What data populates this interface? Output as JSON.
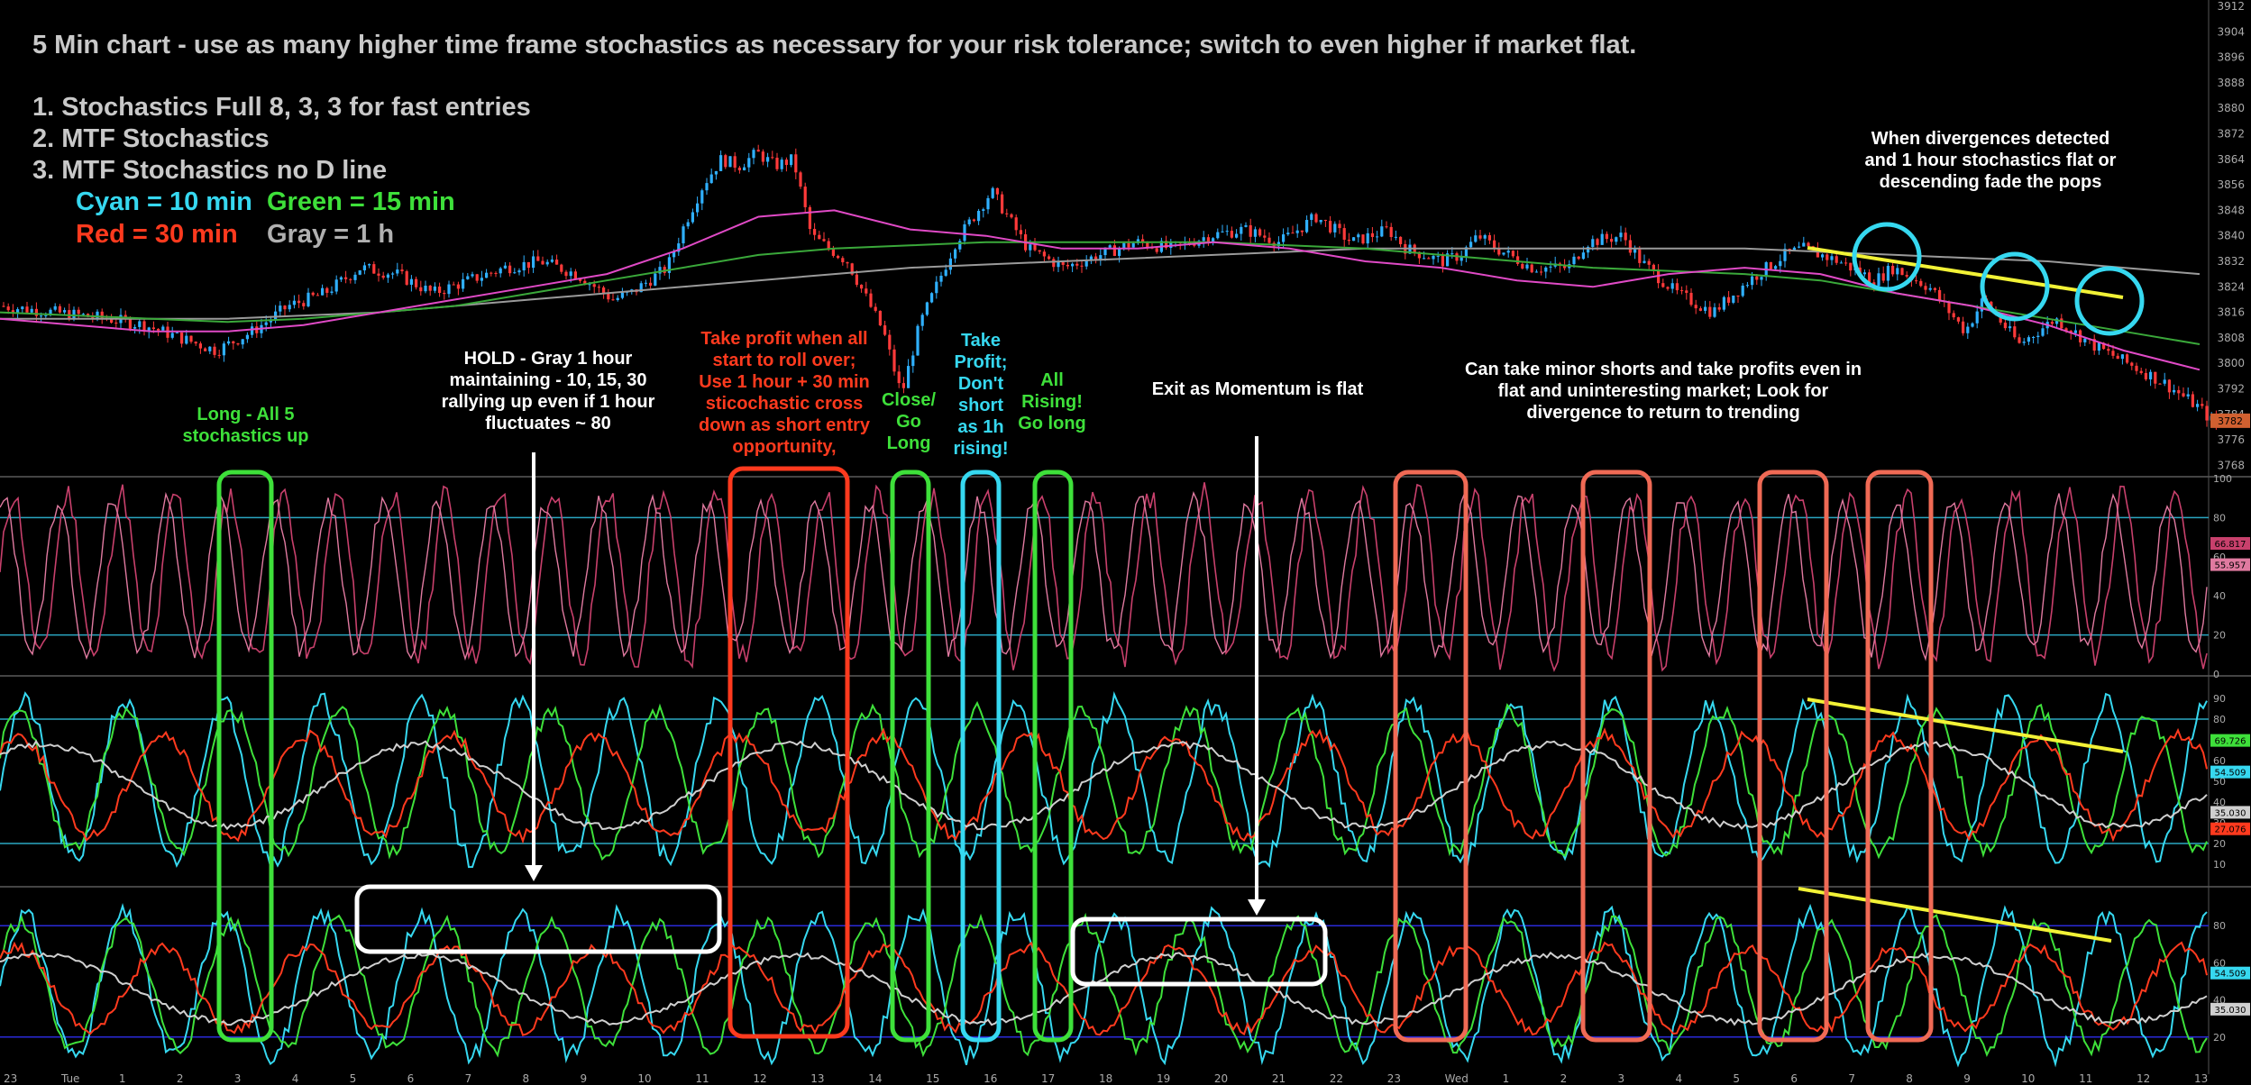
{
  "colors": {
    "cyan": "#36d8f0",
    "green": "#3ee03a",
    "red": "#ff3a1e",
    "gray": "#b0b0b0",
    "magenta": "#e04ac6",
    "salmon": "#f06a55",
    "yellow": "#f2f236",
    "white": "#ffffff"
  },
  "header": {
    "title": "5 Min chart - use as many higher time frame stochastics as necessary for your risk tolerance; switch to even higher if market flat.",
    "line1": "1. Stochastics Full 8, 3, 3 for fast entries",
    "line2": "2. MTF Stochastics",
    "line3": "3. MTF Stochastics no D line",
    "cyan_label": "Cyan = 10 min",
    "green_label": "Green = 15 min",
    "red_label": "Red = 30 min",
    "gray_label": "Gray = 1 h"
  },
  "annotations": {
    "long_all5": "Long - All 5 stochastics up",
    "hold": "HOLD - Gray 1 hour maintaining - 10, 15, 30 rallying up even if 1 hour fluctuates ~ 80",
    "take_profit_roll": "Take profit when all start to roll over; Use 1 hour + 30 min sticochastic cross down as short entry opportunity,",
    "close_go_long": "Close/ Go Long",
    "take_profit_dont_short": "Take Profit; Don't short as 1h rising!",
    "all_rising": "All Rising! Go long",
    "exit_momentum": "Exit as Momentum is flat",
    "minor_shorts": "Can take minor shorts and take profits even in flat and uninteresting market; Look for divergence to return to trending",
    "divergence": "When divergences detected and 1 hour stochastics flat or descending fade the pops"
  },
  "price_axis": {
    "labels": [
      "3912",
      "3904",
      "3896",
      "3888",
      "3880",
      "3872",
      "3864",
      "3856",
      "3848",
      "3840",
      "3832",
      "3824",
      "3816",
      "3808",
      "3800",
      "3792",
      "3784",
      "3776",
      "3768"
    ],
    "current": "3782"
  },
  "oscillator_axis": {
    "panel1": {
      "labels": [
        "100",
        "80",
        "60",
        "40",
        "20",
        "0"
      ],
      "tags": [
        "66.817",
        "55.957"
      ]
    },
    "panel2": {
      "labels": [
        "90",
        "80",
        "70",
        "60",
        "50",
        "40",
        "30",
        "20",
        "10"
      ],
      "tags": [
        "69.726",
        "54.509",
        "35.030",
        "27.076"
      ]
    },
    "panel3": {
      "labels": [
        "80",
        "60",
        "40",
        "20"
      ],
      "tags": [
        "54.509",
        "35.030"
      ]
    }
  },
  "time_axis": [
    "23",
    "Tue",
    "1",
    "2",
    "3",
    "4",
    "5",
    "6",
    "7",
    "8",
    "9",
    "10",
    "11",
    "12",
    "13",
    "14",
    "15",
    "16",
    "17",
    "18",
    "19",
    "20",
    "21",
    "22",
    "23",
    "Wed",
    "1",
    "2",
    "3",
    "4",
    "5",
    "6",
    "7",
    "8",
    "9",
    "10",
    "11",
    "12",
    "13"
  ],
  "chart_data": [
    {
      "type": "line",
      "name": "price",
      "ylim": [
        3765,
        3912
      ],
      "keypoints_x": [
        0,
        60,
        120,
        160,
        200,
        240,
        280,
        320,
        360,
        380,
        400,
        440,
        480,
        520,
        560,
        600,
        640,
        680,
        700,
        740,
        760,
        780,
        800,
        820,
        840,
        860,
        880,
        900,
        940,
        980,
        1000,
        1020,
        1060,
        1100,
        1140,
        1180,
        1220,
        1260,
        1300,
        1340,
        1380,
        1420,
        1460,
        1500,
        1540,
        1560,
        1600,
        1620,
        1640,
        1660,
        1700,
        1740,
        1760,
        1800,
        1820,
        1860,
        1900,
        1940,
        1980,
        2000,
        2040,
        2080,
        2100,
        2140,
        2180,
        2200,
        2240,
        2280,
        2320,
        2360,
        2400,
        2440,
        2460
      ],
      "keypoints_y": [
        3818,
        3816,
        3814,
        3812,
        3808,
        3804,
        3810,
        3818,
        3822,
        3826,
        3830,
        3828,
        3822,
        3826,
        3830,
        3832,
        3828,
        3820,
        3822,
        3830,
        3844,
        3856,
        3864,
        3862,
        3866,
        3862,
        3864,
        3840,
        3832,
        3810,
        3790,
        3812,
        3838,
        3854,
        3836,
        3830,
        3834,
        3838,
        3836,
        3840,
        3842,
        3838,
        3846,
        3838,
        3842,
        3836,
        3832,
        3834,
        3840,
        3836,
        3830,
        3830,
        3838,
        3840,
        3832,
        3822,
        3816,
        3826,
        3834,
        3836,
        3832,
        3826,
        3830,
        3824,
        3810,
        3820,
        3806,
        3814,
        3806,
        3800,
        3794,
        3786,
        3780
      ],
      "ma_fast": [
        3814,
        3812,
        3810,
        3810,
        3812,
        3816,
        3820,
        3824,
        3828,
        3836,
        3846,
        3848,
        3842,
        3840,
        3836,
        3836,
        3838,
        3836,
        3832,
        3830,
        3826,
        3824,
        3828,
        3830,
        3828,
        3822,
        3818,
        3812,
        3804,
        3798
      ],
      "ma_mid": [
        3816,
        3815,
        3814,
        3813,
        3814,
        3816,
        3818,
        3822,
        3826,
        3830,
        3834,
        3836,
        3837,
        3838,
        3838,
        3838,
        3838,
        3837,
        3836,
        3834,
        3832,
        3830,
        3829,
        3828,
        3826,
        3822,
        3818,
        3814,
        3810,
        3806
      ],
      "ma_slow": [
        3814,
        3814,
        3814,
        3814,
        3815,
        3816,
        3818,
        3820,
        3822,
        3824,
        3826,
        3828,
        3830,
        3831,
        3832,
        3833,
        3834,
        3835,
        3836,
        3836,
        3836,
        3836,
        3836,
        3836,
        3835,
        3834,
        3833,
        3832,
        3830,
        3828
      ]
    },
    {
      "type": "line",
      "name": "Stochastics Full 8, 3, 3",
      "ylim": [
        0,
        100
      ],
      "levels": [
        80,
        20
      ],
      "period_hint": 60
    },
    {
      "type": "line",
      "name": "MTF Stochastics",
      "ylim": [
        0,
        100
      ],
      "levels": [
        80,
        20
      ],
      "series": [
        {
          "name": "10 min",
          "color": "cyan"
        },
        {
          "name": "15 min",
          "color": "green"
        },
        {
          "name": "30 min",
          "color": "red"
        },
        {
          "name": "1 h",
          "color": "gray"
        }
      ]
    },
    {
      "type": "line",
      "name": "MTF Stochastics no D line",
      "ylim": [
        0,
        100
      ],
      "levels": [
        80,
        20
      ],
      "series": [
        {
          "name": "10 min",
          "color": "cyan"
        },
        {
          "name": "15 min",
          "color": "green"
        },
        {
          "name": "30 min",
          "color": "red"
        },
        {
          "name": "1 h",
          "color": "gray"
        }
      ]
    }
  ]
}
